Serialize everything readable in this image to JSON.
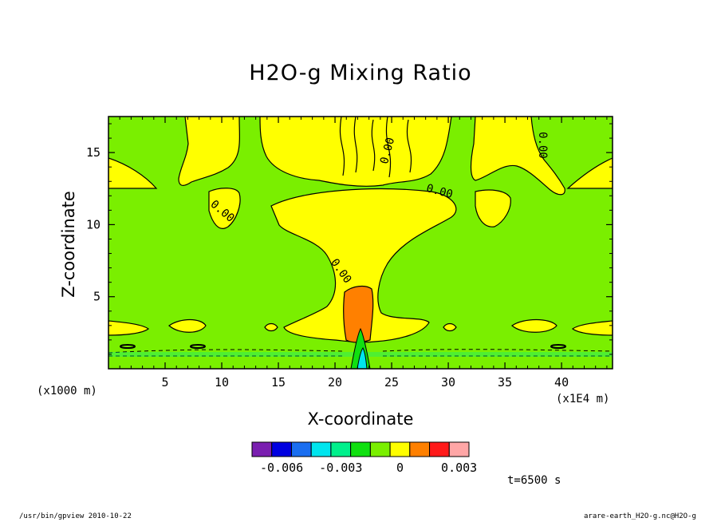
{
  "chart_data": {
    "type": "heatmap",
    "title": "H2O-g Mixing Ratio",
    "xlabel": "X-coordinate",
    "ylabel": "Z-coordinate",
    "x_unit": "(x1000 m)",
    "x_unit_right": "(x1E4 m)",
    "xlim": [
      0,
      44.5
    ],
    "ylim": [
      0,
      17.5
    ],
    "x_ticks": [
      5,
      10,
      15,
      20,
      25,
      30,
      35,
      40
    ],
    "y_ticks": [
      5,
      10,
      15
    ],
    "contour_labels": [
      "0.00",
      "0.00",
      "0.00",
      "0.00",
      "0.00"
    ],
    "colorbar": {
      "colors": [
        "#7a1fb0",
        "#0000e0",
        "#1a6ef0",
        "#00e5ee",
        "#00f08c",
        "#10e010",
        "#7aef00",
        "#ffff00",
        "#ff8000",
        "#ff1a1a",
        "#ffa6a6"
      ],
      "labels": [
        "-0.006",
        "-0.003",
        "0",
        "0.003"
      ],
      "label_positions": [
        -0.006,
        -0.003,
        0,
        0.003
      ],
      "min": -0.0075,
      "max": 0.0035
    },
    "background_color": "#7aef00",
    "positive_color": "#ffff00",
    "max_color": "#ff8000",
    "grid": false
  },
  "time": "t=6500 s",
  "footer": {
    "left": "/usr/bin/gpview   2010-10-22",
    "right": "arare-earth_H2O-g.nc@H2O-g"
  }
}
